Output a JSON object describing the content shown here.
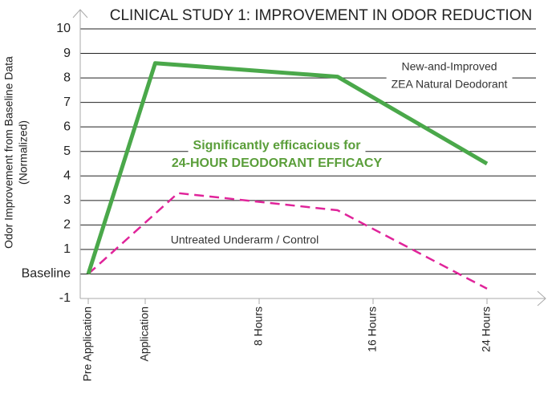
{
  "chart_data": {
    "type": "line",
    "title": "CLINICAL STUDY 1: IMPROVEMENT IN ODOR REDUCTION",
    "y_label": [
      "Odor Improvement from Baseline Data",
      "(Normalized)"
    ],
    "xlim": [
      -4,
      24
    ],
    "xticks": [
      {
        "value": -4,
        "label": "Pre Application"
      },
      {
        "value": 0,
        "label": "Application"
      },
      {
        "value": 8,
        "label": "8 Hours"
      },
      {
        "value": 16,
        "label": "16 Hours"
      },
      {
        "value": 24,
        "label": "24 Hours"
      }
    ],
    "ylim": [
      -1,
      10
    ],
    "yticks": [
      -1,
      {
        "value": 0,
        "label": "Baseline"
      },
      1,
      2,
      3,
      4,
      5,
      6,
      7,
      8,
      9,
      10
    ],
    "grid": true,
    "series": [
      {
        "color": "#4aa84a",
        "dash": false,
        "x": [
          -4,
          0.7,
          13.5,
          24
        ],
        "values": [
          0,
          8.6,
          8.05,
          4.5
        ]
      },
      {
        "color": "#e0249a",
        "dash": true,
        "x": [
          -4,
          2.3,
          13.5,
          24
        ],
        "values": [
          0,
          3.3,
          2.6,
          -0.6
        ]
      }
    ],
    "annotations": [
      {
        "lines": [
          "New-and-Improved",
          "ZEA Natural Deodorant"
        ],
        "color": "#333333",
        "bold": false
      },
      {
        "lines": [
          "Significantly efficacious for",
          "24-HOUR DEODORANT EFFICACY"
        ],
        "color": "#5a9e3a",
        "bold": true
      },
      {
        "lines": [
          "Untreated Underarm / Control"
        ],
        "color": "#333333",
        "bold": false
      }
    ]
  }
}
